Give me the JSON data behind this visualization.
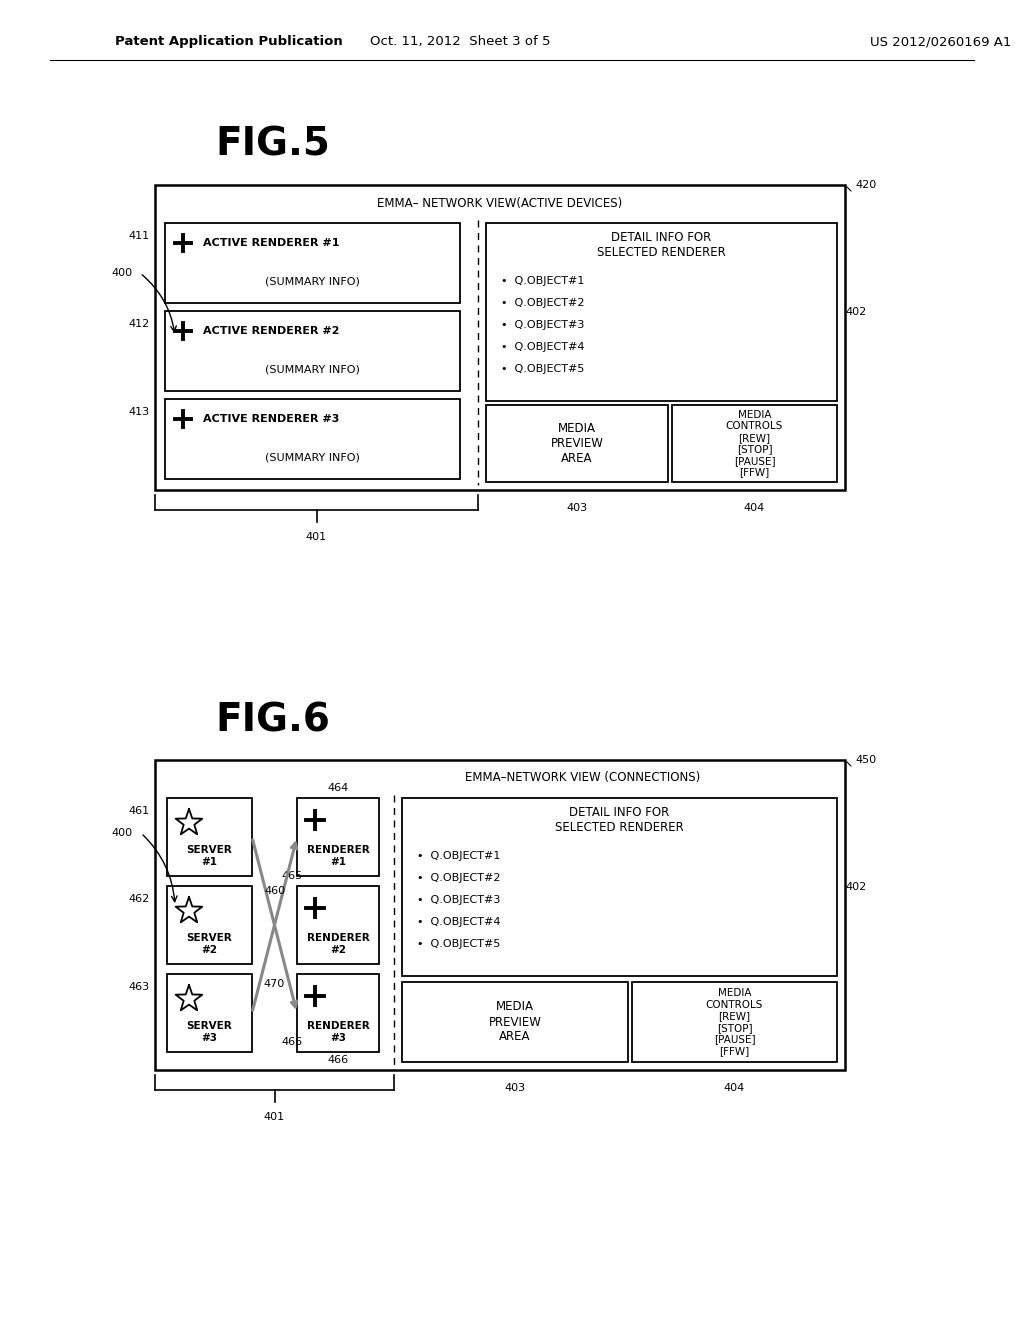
{
  "bg_color": "#ffffff",
  "header_left": "Patent Application Publication",
  "header_mid": "Oct. 11, 2012  Sheet 3 of 5",
  "header_right": "US 2012/0260169 A1",
  "fig5_title": "FIG.5",
  "fig6_title": "FIG.6",
  "fig5_box_title": "EMMA– NETWORK VIEW(ACTIVE DEVICES)",
  "fig6_box_title": "EMMA–NETWORK VIEW (CONNECTIONS)",
  "detail_info_title": "DETAIL INFO FOR\nSELECTED RENDERER",
  "q_objects": [
    "Q.OBJECT#1",
    "Q.OBJECT#2",
    "Q.OBJECT#3",
    "Q.OBJECT#4",
    "Q.OBJECT#5"
  ],
  "media_preview": "MEDIA\nPREVIEW\nAREA",
  "media_controls": "MEDIA\nCONTROLS\n[REW]\n[STOP]\n[PAUSE]\n[FFW]",
  "fig5_renderers": [
    "ACTIVE RENDERER #1",
    "ACTIVE RENDERER #2",
    "ACTIVE RENDERER #3"
  ],
  "summary_info": "(SUMMARY INFO)",
  "fig6_servers": [
    "SERVER\n#1",
    "SERVER\n#2",
    "SERVER\n#3"
  ],
  "fig6_renderers": [
    "RENDERER\n#1",
    "RENDERER\n#2",
    "RENDERER\n#3"
  ],
  "font_size_header": 9.5,
  "font_size_fig_title": 26,
  "font_size_label": 8
}
